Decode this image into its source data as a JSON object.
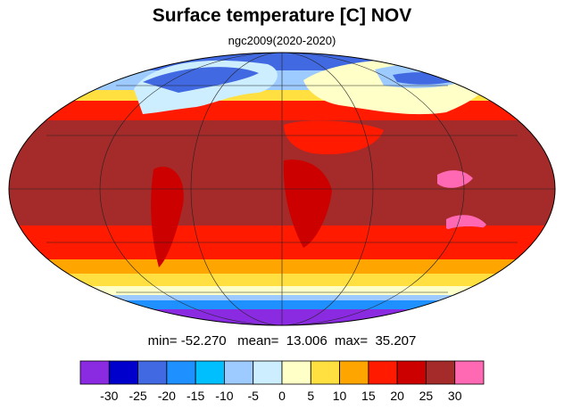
{
  "title": "Surface temperature [C] NOV",
  "subtitle": "ngc2009(2020-2020)",
  "stats": {
    "min_label": "min=",
    "min": "-52.270",
    "mean_label": "mean=",
    "mean": "13.006",
    "max_label": "max=",
    "max": "35.207"
  },
  "map": {
    "projection": "mollweide",
    "grid_spacing_deg": {
      "lon": 60,
      "lat": 30
    },
    "coastlines": true
  },
  "colorbar": {
    "labels": [
      "-30",
      "-25",
      "-20",
      "-15",
      "-10",
      "-5",
      "0",
      "5",
      "10",
      "15",
      "20",
      "25",
      "30"
    ],
    "colors": [
      "#8a2be2",
      "#0000cd",
      "#4169e1",
      "#1e90ff",
      "#00bfff",
      "#9ecbff",
      "#cdeeff",
      "#ffffc8",
      "#ffe040",
      "#ffa500",
      "#ff1a00",
      "#cd0000",
      "#a52a2a",
      "#ff69b4"
    ]
  }
}
